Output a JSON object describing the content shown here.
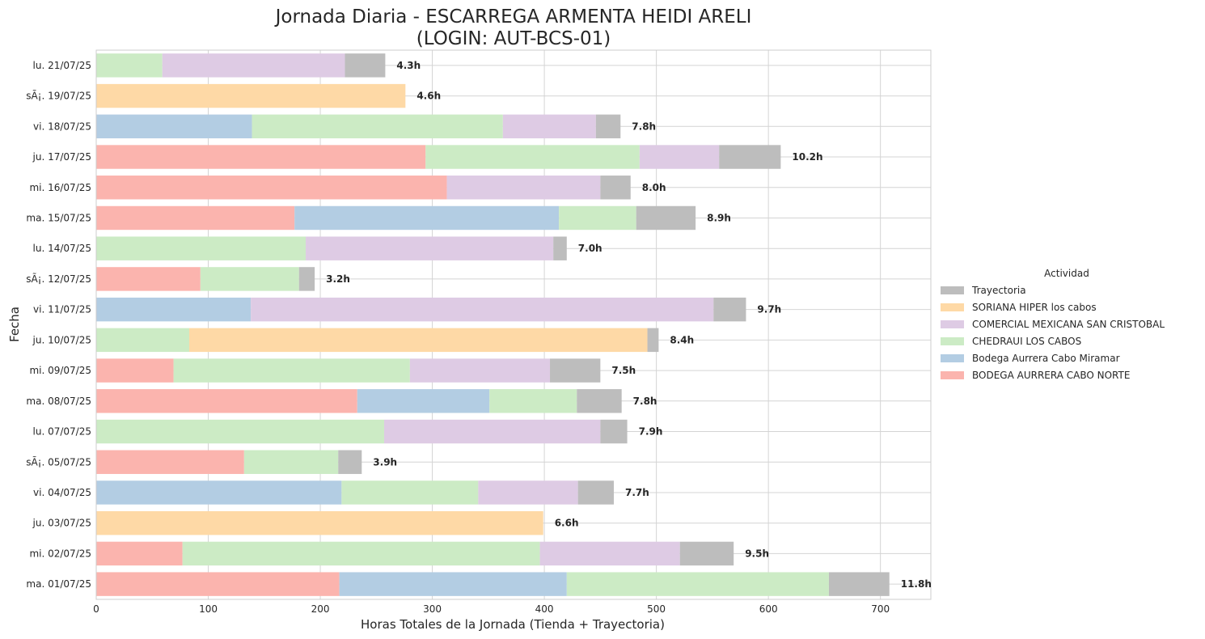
{
  "chart_data": {
    "type": "bar",
    "orientation": "horizontal",
    "stacked": true,
    "title": "Jornada Diaria - ESCARREGA ARMENTA HEIDI ARELI",
    "subtitle": "(LOGIN: AUT-BCS-01)",
    "xlabel": "Horas Totales de la Jornada (Tienda + Trayectoria)",
    "ylabel": "Fecha",
    "xlim": [
      0,
      745
    ],
    "xticks": [
      0,
      100,
      200,
      300,
      400,
      500,
      600,
      700
    ],
    "grid": true,
    "legend": {
      "title": "Actividad",
      "placement": "center-right"
    },
    "categories": [
      "lu. 21/07/25",
      "sÃ¡. 19/07/25",
      "vi. 18/07/25",
      "ju. 17/07/25",
      "mi. 16/07/25",
      "ma. 15/07/25",
      "lu. 14/07/25",
      "sÃ¡. 12/07/25",
      "vi. 11/07/25",
      "ju. 10/07/25",
      "mi. 09/07/25",
      "ma. 08/07/25",
      "lu. 07/07/25",
      "sÃ¡. 05/07/25",
      "vi. 04/07/25",
      "ju. 03/07/25",
      "mi. 02/07/25",
      "ma. 01/07/25"
    ],
    "totals_labels": [
      "4.3h",
      "4.6h",
      "7.8h",
      "10.2h",
      "8.0h",
      "8.9h",
      "7.0h",
      "3.2h",
      "9.7h",
      "8.4h",
      "7.5h",
      "7.8h",
      "7.9h",
      "3.9h",
      "7.7h",
      "6.6h",
      "9.5h",
      "11.8h"
    ],
    "series": [
      {
        "name": "BODEGA AURRERA CABO NORTE",
        "color": "#fbb4ae",
        "values": [
          0,
          0,
          0,
          294,
          313,
          177,
          0,
          93,
          0,
          0,
          69,
          233,
          0,
          132,
          0,
          0,
          77,
          217
        ]
      },
      {
        "name": "Bodega Aurrera Cabo Miramar",
        "color": "#b3cde3",
        "values": [
          0,
          0,
          139,
          0,
          0,
          236,
          0,
          0,
          138,
          0,
          0,
          118,
          0,
          0,
          219,
          0,
          0,
          203
        ]
      },
      {
        "name": "CHEDRAUI LOS CABOS",
        "color": "#ccebc5",
        "values": [
          59,
          0,
          224,
          191,
          0,
          69,
          187,
          88,
          0,
          83,
          211,
          78,
          257,
          84,
          122,
          0,
          319,
          234
        ]
      },
      {
        "name": "COMERCIAL MEXICANA SAN CRISTOBAL",
        "color": "#decbe4",
        "values": [
          163,
          0,
          83,
          71,
          137,
          0,
          221,
          0,
          413,
          0,
          125,
          0,
          193,
          0,
          89,
          0,
          125,
          0
        ]
      },
      {
        "name": "SORIANA HIPER los cabos",
        "color": "#fed9a6",
        "values": [
          0,
          276,
          0,
          0,
          0,
          0,
          0,
          0,
          0,
          409,
          0,
          0,
          0,
          0,
          0,
          399,
          0,
          0
        ]
      },
      {
        "name": "Trayectoria",
        "color": "#bdbdbd",
        "values": [
          36,
          0,
          22,
          55,
          27,
          53,
          12,
          14,
          29,
          10,
          45,
          40,
          24,
          21,
          32,
          0,
          48,
          54
        ]
      }
    ]
  }
}
